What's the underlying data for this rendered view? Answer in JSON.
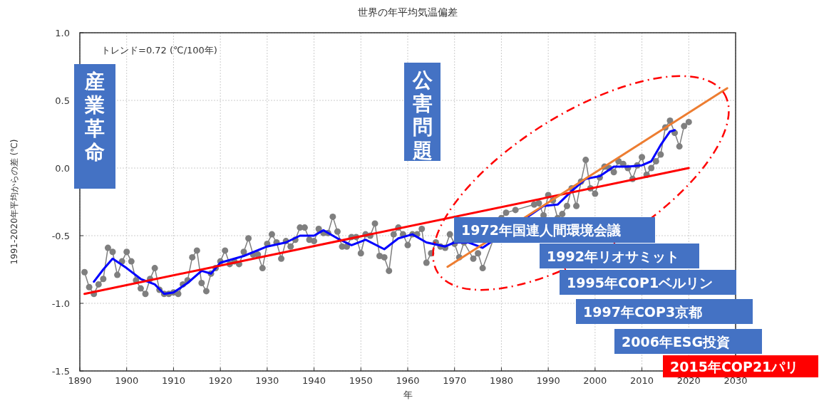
{
  "chart_data": {
    "type": "line",
    "title": "世界の年平均気温偏差",
    "xlabel": "年",
    "ylabel": "1991-2020年平均からの差 (℃)",
    "xlim": [
      1890,
      2030
    ],
    "xticks": [
      1890,
      1900,
      1910,
      1920,
      1930,
      1940,
      1950,
      1960,
      1970,
      1980,
      1990,
      2000,
      2010,
      2020,
      2030
    ],
    "ylim": [
      -1.5,
      1.0
    ],
    "yticks": [
      {
        "value": -1.5,
        "label": "-1.5"
      },
      {
        "value": -1.0,
        "label": "-1.0"
      },
      {
        "value": -0.5,
        "label": "-0.5"
      },
      {
        "value": 0,
        "label": "0.0"
      },
      {
        "value": 0.5,
        "label": "0.5"
      },
      {
        "value": 1.0,
        "label": "1.0"
      }
    ],
    "grid": true,
    "series": [
      {
        "color": "#7f7f7f",
        "marker": "circle",
        "x": [
          1891,
          1892,
          1893,
          1894,
          1895,
          1896,
          1897,
          1898,
          1899,
          1900,
          1901,
          1902,
          1903,
          1904,
          1905,
          1906,
          1907,
          1908,
          1909,
          1910,
          1911,
          1912,
          1913,
          1914,
          1915,
          1916,
          1917,
          1918,
          1919,
          1920,
          1921,
          1922,
          1923,
          1924,
          1925,
          1926,
          1927,
          1928,
          1929,
          1930,
          1931,
          1932,
          1933,
          1934,
          1935,
          1936,
          1937,
          1938,
          1939,
          1940,
          1941,
          1942,
          1943,
          1944,
          1945,
          1946,
          1947,
          1948,
          1949,
          1950,
          1951,
          1952,
          1953,
          1954,
          1955,
          1956,
          1957,
          1958,
          1959,
          1960,
          1961,
          1962,
          1963,
          1964,
          1965,
          1966,
          1967,
          1968,
          1969,
          1970,
          1971,
          1972,
          1973,
          1974,
          1975,
          1976,
          1977,
          1978,
          1979,
          1980,
          1981,
          1982,
          1983,
          1984,
          1985,
          1986,
          1987,
          1988,
          1989,
          1990,
          1991,
          1992,
          1993,
          1994,
          1995,
          1996,
          1997,
          1998,
          1999,
          2000,
          2001,
          2002,
          2003,
          2004,
          2005,
          2006,
          2007,
          2008,
          2009,
          2010,
          2011,
          2012,
          2013,
          2014,
          2015,
          2016,
          2017,
          2018,
          2019,
          2020
        ],
        "values": [
          -0.77,
          -0.88,
          -0.93,
          -0.86,
          -0.82,
          -0.59,
          -0.62,
          -0.79,
          -0.69,
          -0.62,
          -0.69,
          -0.83,
          -0.89,
          -0.93,
          -0.82,
          -0.74,
          -0.9,
          -0.93,
          -0.93,
          -0.92,
          -0.93,
          -0.86,
          -0.83,
          -0.66,
          -0.61,
          -0.85,
          -0.91,
          -0.78,
          -0.74,
          -0.69,
          -0.61,
          -0.71,
          -0.69,
          -0.71,
          -0.62,
          -0.52,
          -0.64,
          -0.64,
          -0.74,
          -0.56,
          -0.49,
          -0.55,
          -0.67,
          -0.54,
          -0.58,
          -0.53,
          -0.44,
          -0.44,
          -0.53,
          -0.54,
          -0.45,
          -0.48,
          -0.48,
          -0.36,
          -0.47,
          -0.58,
          -0.58,
          -0.51,
          -0.51,
          -0.63,
          -0.49,
          -0.5,
          -0.41,
          -0.65,
          -0.66,
          -0.76,
          -0.49,
          -0.44,
          -0.49,
          -0.57,
          -0.49,
          -0.49,
          -0.45,
          -0.7,
          -0.63,
          -0.55,
          -0.58,
          -0.59,
          -0.49,
          -0.56,
          -0.66,
          -0.55,
          null,
          -0.67,
          -0.63,
          -0.74,
          null,
          null,
          null,
          -0.37,
          -0.33,
          null,
          -0.31,
          null,
          null,
          null,
          -0.27,
          -0.26,
          -0.35,
          -0.2,
          -0.24,
          -0.37,
          -0.34,
          -0.28,
          -0.15,
          -0.28,
          -0.1,
          0.06,
          -0.15,
          -0.19,
          -0.07,
          0.01,
          0.0,
          -0.03,
          0.05,
          0.03,
          0.0,
          -0.08,
          0.02,
          0.08,
          -0.05,
          0.0,
          0.05,
          0.1,
          0.3,
          0.35,
          0.26,
          0.16,
          0.31,
          0.34
        ]
      },
      {
        "color": "#0000ff",
        "marker": "none",
        "x": [
          1893,
          1895,
          1897,
          1900,
          1903,
          1906,
          1908,
          1910,
          1913,
          1916,
          1918,
          1920,
          1925,
          1930,
          1934,
          1937,
          1940,
          1942,
          1945,
          1948,
          1951,
          1955,
          1958,
          1961,
          1964,
          1968,
          1970,
          1973,
          1976,
          1980,
          1983,
          1986,
          1989,
          1992,
          1995,
          1998,
          2001,
          2004,
          2007,
          2010,
          2012,
          2014,
          2016,
          2017
        ],
        "values": [
          -0.84,
          -0.75,
          -0.67,
          -0.74,
          -0.82,
          -0.86,
          -0.93,
          -0.92,
          -0.85,
          -0.76,
          -0.78,
          -0.7,
          -0.65,
          -0.58,
          -0.55,
          -0.5,
          -0.5,
          -0.46,
          -0.52,
          -0.57,
          -0.53,
          -0.6,
          -0.52,
          -0.49,
          -0.55,
          -0.58,
          -0.55,
          -0.55,
          -0.59,
          null,
          null,
          null,
          -0.28,
          -0.27,
          -0.17,
          -0.08,
          -0.06,
          0.01,
          0.01,
          0.02,
          0.05,
          0.17,
          0.27,
          0.28
        ]
      },
      {
        "color": "#ff0000",
        "marker": "none",
        "x": [
          1891,
          2020
        ],
        "values": [
          -0.93,
          0.0
        ]
      },
      {
        "color": "#ed7d31",
        "marker": "none",
        "x": [
          1968.5,
          2028.2
        ],
        "values": [
          -0.73,
          0.59
        ]
      }
    ],
    "annotations": [
      "トレンド=0.72 (℃/100年)",
      "産業革命",
      "公害問題",
      "1972年国連人間環境会議",
      "1992年リオサミット",
      "1995年COP1ベルリン",
      "1997年COP3京都",
      "2006年ESG投資",
      "2015年COP21パリ"
    ]
  }
}
